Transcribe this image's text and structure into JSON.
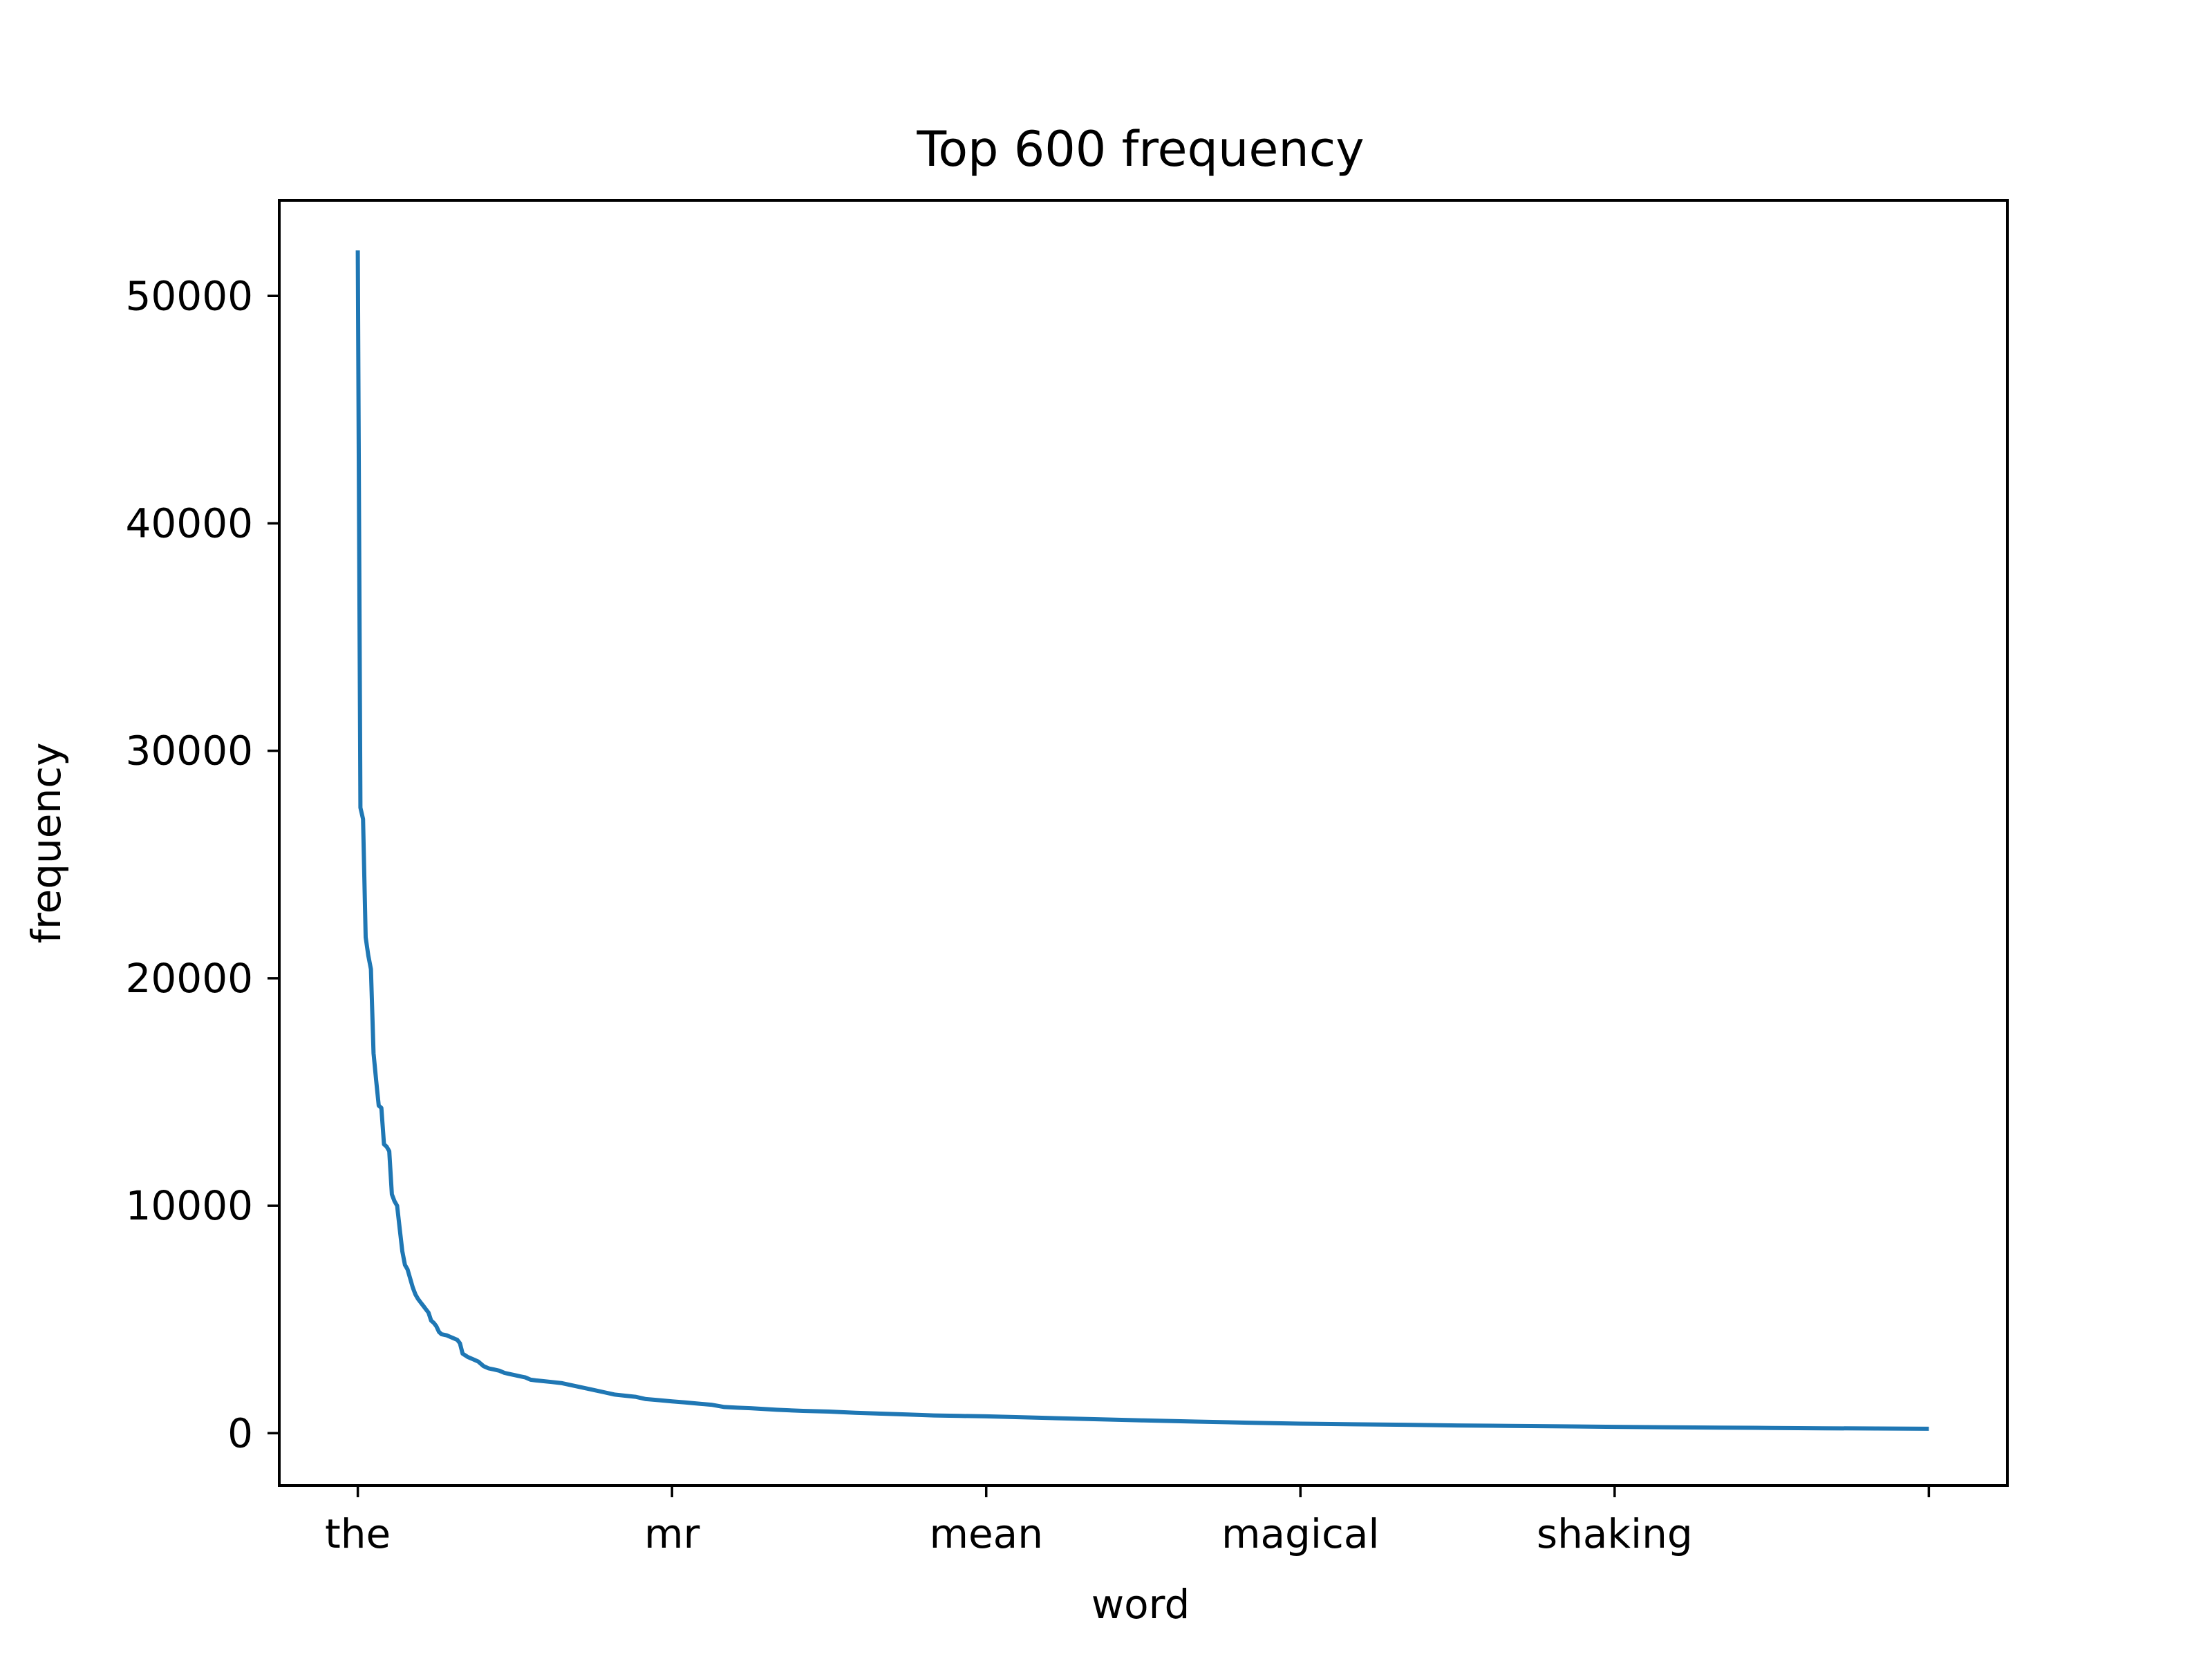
{
  "chart_data": {
    "type": "line",
    "title": "Top 600 frequency",
    "xlabel": "word",
    "ylabel": "frequency",
    "x_tick_labels": [
      "the",
      "mr",
      "mean",
      "magical",
      "shaking",
      ""
    ],
    "x_tick_positions": [
      0,
      120,
      240,
      360,
      480,
      600
    ],
    "xlim": [
      -30,
      630
    ],
    "y_ticks": [
      0,
      10000,
      20000,
      30000,
      40000,
      50000
    ],
    "y_tick_labels": [
      "0",
      "10000",
      "20000",
      "30000",
      "40000",
      "50000"
    ],
    "ylim": [
      -2300,
      54200
    ],
    "grid": false,
    "colors": {
      "line": "#1f77b4",
      "axes": "#000000",
      "background": "#ffffff"
    },
    "series": [
      {
        "points": [
          [
            0,
            52000
          ],
          [
            1,
            27500
          ],
          [
            2,
            27000
          ],
          [
            3,
            21800
          ],
          [
            4,
            21000
          ],
          [
            5,
            20400
          ],
          [
            6,
            16700
          ],
          [
            7,
            15500
          ],
          [
            8,
            14400
          ],
          [
            9,
            14300
          ],
          [
            10,
            12700
          ],
          [
            11,
            12600
          ],
          [
            12,
            12400
          ],
          [
            13,
            10500
          ],
          [
            14,
            10200
          ],
          [
            15,
            10000
          ],
          [
            16,
            9000
          ],
          [
            17,
            8000
          ],
          [
            18,
            7400
          ],
          [
            19,
            7200
          ],
          [
            20,
            6800
          ],
          [
            21,
            6400
          ],
          [
            22,
            6100
          ],
          [
            23,
            5900
          ],
          [
            24,
            5750
          ],
          [
            25,
            5600
          ],
          [
            26,
            5450
          ],
          [
            27,
            5300
          ],
          [
            28,
            4950
          ],
          [
            29,
            4850
          ],
          [
            30,
            4700
          ],
          [
            31,
            4450
          ],
          [
            32,
            4350
          ],
          [
            34,
            4300
          ],
          [
            36,
            4200
          ],
          [
            38,
            4100
          ],
          [
            39,
            3950
          ],
          [
            40,
            3500
          ],
          [
            42,
            3350
          ],
          [
            44,
            3250
          ],
          [
            46,
            3150
          ],
          [
            48,
            2950
          ],
          [
            50,
            2850
          ],
          [
            52,
            2800
          ],
          [
            54,
            2750
          ],
          [
            56,
            2650
          ],
          [
            58,
            2600
          ],
          [
            60,
            2550
          ],
          [
            62,
            2500
          ],
          [
            64,
            2450
          ],
          [
            66,
            2350
          ],
          [
            68,
            2320
          ],
          [
            70,
            2300
          ],
          [
            74,
            2250
          ],
          [
            78,
            2200
          ],
          [
            82,
            2100
          ],
          [
            86,
            2000
          ],
          [
            90,
            1900
          ],
          [
            94,
            1800
          ],
          [
            98,
            1700
          ],
          [
            102,
            1650
          ],
          [
            106,
            1600
          ],
          [
            110,
            1500
          ],
          [
            115,
            1450
          ],
          [
            120,
            1400
          ],
          [
            125,
            1350
          ],
          [
            130,
            1300
          ],
          [
            135,
            1250
          ],
          [
            140,
            1150
          ],
          [
            145,
            1120
          ],
          [
            150,
            1100
          ],
          [
            160,
            1030
          ],
          [
            170,
            980
          ],
          [
            180,
            950
          ],
          [
            190,
            900
          ],
          [
            200,
            860
          ],
          [
            210,
            820
          ],
          [
            220,
            780
          ],
          [
            230,
            760
          ],
          [
            240,
            740
          ],
          [
            260,
            680
          ],
          [
            280,
            620
          ],
          [
            300,
            560
          ],
          [
            320,
            510
          ],
          [
            340,
            460
          ],
          [
            360,
            420
          ],
          [
            380,
            390
          ],
          [
            400,
            370
          ],
          [
            420,
            340
          ],
          [
            440,
            320
          ],
          [
            460,
            300
          ],
          [
            480,
            280
          ],
          [
            500,
            260
          ],
          [
            520,
            245
          ],
          [
            540,
            230
          ],
          [
            560,
            215
          ],
          [
            580,
            205
          ],
          [
            600,
            195
          ]
        ]
      }
    ]
  }
}
